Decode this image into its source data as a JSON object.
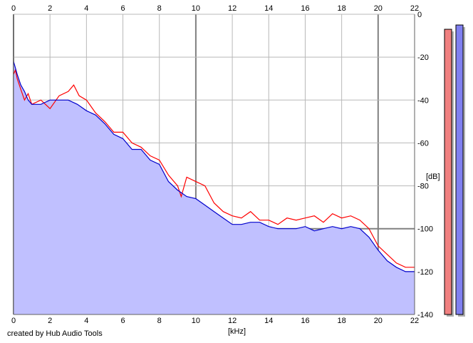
{
  "chart_data": {
    "type": "area",
    "xlabel": "[kHz]",
    "ylabel": "[dB]",
    "xlim": [
      0,
      22
    ],
    "ylim": [
      -140,
      0
    ],
    "x_ticks": [
      0,
      2,
      4,
      6,
      8,
      10,
      12,
      14,
      16,
      18,
      20,
      22
    ],
    "y_ticks": [
      0,
      -20,
      -40,
      -60,
      -80,
      -100,
      -120,
      -140
    ],
    "y_tick_labels": [
      "0",
      "-20",
      "-40",
      "-60",
      "-80",
      "-100",
      "-120",
      "-140"
    ],
    "grid": true,
    "series": [
      {
        "color": "#ff0000",
        "x": [
          0,
          0.1,
          0.2,
          0.4,
          0.6,
          0.8,
          1.0,
          1.5,
          2.0,
          2.5,
          3.0,
          3.3,
          3.6,
          4.0,
          4.5,
          5.0,
          5.5,
          6.0,
          6.5,
          7.0,
          7.5,
          8.0,
          8.5,
          9.0,
          9.2,
          9.5,
          10.0,
          10.5,
          11.0,
          11.5,
          12.0,
          12.5,
          13.0,
          13.5,
          14.0,
          14.5,
          15.0,
          15.5,
          16.0,
          16.5,
          17.0,
          17.5,
          18.0,
          18.5,
          19.0,
          19.5,
          20.0,
          20.5,
          21.0,
          21.5,
          22.0
        ],
        "values": [
          -28,
          -26,
          -30,
          -35,
          -40,
          -37,
          -42,
          -40,
          -44,
          -38,
          -36,
          -33,
          -38,
          -40,
          -46,
          -50,
          -55,
          -55,
          -60,
          -62,
          -66,
          -68,
          -75,
          -80,
          -85,
          -76,
          -78,
          -80,
          -88,
          -92,
          -94,
          -95,
          -92,
          -96,
          -96,
          -98,
          -95,
          -96,
          -95,
          -94,
          -97,
          -93,
          -95,
          -94,
          -96,
          -100,
          -108,
          -112,
          -116,
          -118,
          -118
        ]
      },
      {
        "color": "#0000cc",
        "x": [
          0,
          0.1,
          0.2,
          0.4,
          0.6,
          0.8,
          1.0,
          1.5,
          2.0,
          2.5,
          3.0,
          3.5,
          4.0,
          4.5,
          5.0,
          5.5,
          6.0,
          6.5,
          7.0,
          7.5,
          8.0,
          8.5,
          9.0,
          9.5,
          10.0,
          10.5,
          11.0,
          11.5,
          12.0,
          12.5,
          13.0,
          13.5,
          14.0,
          14.5,
          15.0,
          15.5,
          16.0,
          16.5,
          17.0,
          17.5,
          18.0,
          18.5,
          19.0,
          19.5,
          20.0,
          20.5,
          21.0,
          21.5,
          22.0
        ],
        "values": [
          -22,
          -25,
          -28,
          -33,
          -36,
          -40,
          -42,
          -42,
          -40,
          -40,
          -40,
          -42,
          -45,
          -47,
          -51,
          -56,
          -58,
          -63,
          -63,
          -68,
          -70,
          -78,
          -82,
          -85,
          -86,
          -89,
          -92,
          -95,
          -98,
          -98,
          -97,
          -97,
          -99,
          -100,
          -100,
          -100,
          -99,
          -101,
          -100,
          -99,
          -100,
          -99,
          -100,
          -104,
          -110,
          -115,
          -118,
          -120,
          -120
        ]
      }
    ],
    "meters": [
      {
        "color": "#f08080",
        "level": -7
      },
      {
        "color": "#8080f0",
        "level": -5
      }
    ]
  },
  "xlabel_text": "[kHz]",
  "ylabel_text": "[dB]",
  "credit": "created by Hub Audio Tools"
}
